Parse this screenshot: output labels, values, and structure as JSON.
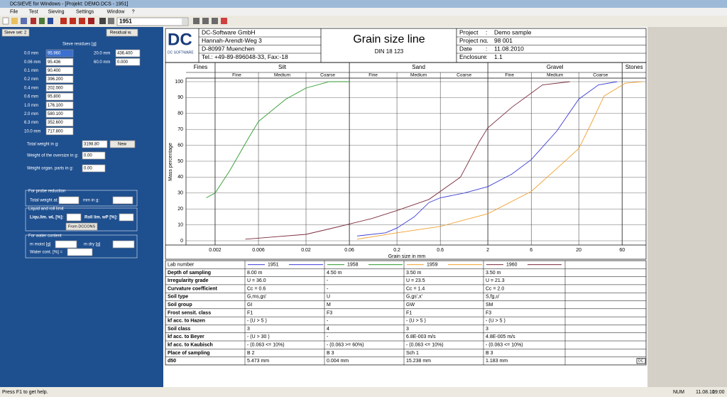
{
  "window": {
    "title": "DCSIEVE for Windows - [Projekt: DEMO.DCS - 1951]",
    "menu": [
      "File",
      "Test",
      "Sieving",
      "Settings",
      "Window",
      "?"
    ],
    "combo": "1951",
    "status": "Press F1 to get help.",
    "indicators": [
      "NUM",
      "11.08.10",
      "19:00"
    ]
  },
  "left_panel": {
    "buttons": [
      "Sieve set: 2",
      "Residual w."
    ],
    "sieve_title": "Sieve residues [g]",
    "sieves": [
      {
        "label": "0.0 mm",
        "value": "95.960"
      },
      {
        "label": "0.06 mm",
        "value": "95.436"
      },
      {
        "label": "0.1 mm",
        "value": "90.400"
      },
      {
        "label": "0.2 mm",
        "value": "396.200"
      },
      {
        "label": "0.4 mm",
        "value": "202.000"
      },
      {
        "label": "0.6 mm",
        "value": "95.800"
      },
      {
        "label": "1.0 mm",
        "value": "176.100"
      },
      {
        "label": "2.0 mm",
        "value": "580.100"
      },
      {
        "label": "6.3 mm",
        "value": "352.600"
      },
      {
        "label": "10.0 mm",
        "value": "717.800"
      },
      {
        "label": "20.0 mm",
        "value": "436.400"
      },
      {
        "label": "60.0 mm",
        "value": "0.000"
      }
    ],
    "total_label": "Total weight in g:",
    "total_value": "3198.80",
    "new_button": "New",
    "oversize_label": "Weight of the oversize in g:",
    "oversize_value": "0.00",
    "organ_label": "Weight organ. parts in g:",
    "organ_value": "0.00",
    "probe": {
      "title": "For probe reduction",
      "label": "Total weight at:",
      "unit": "mm in g:"
    },
    "liquid": {
      "title": "Liquid and roll limit",
      "liquid_label": "Liqu.lim. wL [%]:",
      "roll_label": "Roll lim. wP [%]:",
      "button": "From DCCONS"
    },
    "water": {
      "title": "For water content",
      "moist": "m moist [g]",
      "dry": "m dry [g]",
      "content": "Water cont. [%] ="
    }
  },
  "report": {
    "logo": "DC",
    "logo_sub": "DC SOFTWARE",
    "company": [
      "DC-Software GmbH",
      "Hannah-Arendt-Weg 3",
      "D-80997 Muenchen",
      "Tel.: +49-89-896048-33, Fax:-18"
    ],
    "title": "Grain size line",
    "subtitle": "DIN 18 123",
    "separator": ":",
    "info": [
      {
        "label": "Project",
        "value": "Demo sample"
      },
      {
        "label": "Project no.",
        "value": "98 001"
      },
      {
        "label": "Date",
        "value": "11.08.2010"
      },
      {
        "label": "Enclosure",
        "value": "1.1"
      }
    ],
    "stamp": "DC"
  },
  "chart_data": {
    "type": "line",
    "x_label": "Grain size in mm",
    "y_label": "Mass percentage",
    "xscale": "log",
    "grid": true,
    "bands": [
      "Fines",
      "Silt",
      "Sand",
      "Gravel",
      "Stones"
    ],
    "fractions": [
      "Fine",
      "Medium",
      "Coarse"
    ],
    "xlim": [
      0.0006,
      110
    ],
    "ylim": [
      0,
      100
    ],
    "xticks": [
      0.002,
      0.006,
      0.02,
      0.06,
      0.2,
      0.6,
      2,
      6,
      20,
      60
    ],
    "yticks": [
      0,
      10,
      20,
      30,
      40,
      50,
      60,
      70,
      80,
      90,
      100
    ],
    "series": [
      {
        "name": "1951",
        "color": "#3b3bd6",
        "x": [
          0.073,
          0.15,
          0.2,
          0.31,
          0.45,
          0.6,
          1.1,
          2,
          3.7,
          6,
          11.5,
          20,
          33,
          53
        ],
        "values": [
          3,
          5,
          8,
          15,
          24,
          27,
          30,
          34,
          42,
          51,
          69,
          89,
          98,
          100
        ]
      },
      {
        "name": "1958",
        "color": "#2e9a2e",
        "x": [
          0.0016,
          0.002,
          0.0029,
          0.0046,
          0.006,
          0.012,
          0.02,
          0.036,
          0.06
        ],
        "values": [
          27,
          30,
          44,
          64,
          75,
          89,
          96,
          100,
          100
        ]
      },
      {
        "name": "1959",
        "color": "#f0a030",
        "x": [
          0.073,
          0.2,
          0.6,
          2,
          6,
          13.5,
          20,
          27,
          38,
          65,
          100
        ],
        "values": [
          1,
          5,
          9,
          17,
          31,
          49,
          58,
          73,
          91,
          99,
          100
        ]
      },
      {
        "name": "1960",
        "color": "#7a2a3a",
        "x": [
          0.0043,
          0.02,
          0.043,
          0.107,
          0.2,
          0.45,
          1,
          1.6,
          2,
          3.7,
          8,
          16
        ],
        "values": [
          1,
          4,
          8.5,
          14,
          19,
          26,
          40,
          62,
          71,
          84,
          98,
          100
        ]
      }
    ]
  },
  "table": {
    "header": "Lab number",
    "rows": [
      {
        "label": "Depth of sampling",
        "cells": [
          "8.00 m",
          "4.50 m",
          "3.50 m",
          "3.50 m"
        ]
      },
      {
        "label": "Irregularity grade",
        "cells": [
          "U   = 36.0",
          "-",
          "U   = 23.5",
          "U   = 21.3"
        ]
      },
      {
        "label": "Curvature coefficient",
        "cells": [
          "Cc = 0.6",
          "-",
          "Cc = 1.4",
          "Cc = 2.0"
        ]
      },
      {
        "label": "Soil type",
        "cells": [
          "G,ms,gs'",
          "U",
          "G,gs',x'",
          "S,fg,u'"
        ]
      },
      {
        "label": "Soil group",
        "cells": [
          "GI",
          "M",
          "GW",
          "SM"
        ]
      },
      {
        "label": "Frost sensit. class",
        "cells": [
          "F1",
          "F3",
          "F1",
          "F3"
        ]
      },
      {
        "label": "kf acc. to Hazen",
        "cells": [
          "- (U > 5 )",
          "-",
          "- (U > 5 )",
          "- (U > 5 )"
        ]
      },
      {
        "label": "Soil class",
        "cells": [
          "3",
          "4",
          "3",
          "3"
        ]
      },
      {
        "label": "kf acc. to Beyer",
        "cells": [
          "- (U > 30 )",
          "-",
          "6.8E-003 m/s",
          "4.8E-005 m/s"
        ]
      },
      {
        "label": "kf acc. to Kaubisch",
        "cells": [
          "- (0.063 <= 10%)",
          "- (0.063 >= 60%)",
          "- (0.063 <= 10%)",
          "- (0.063 <= 10%)"
        ]
      },
      {
        "label": "Place of sampling",
        "cells": [
          "B 2",
          "B 3",
          "Sch 1",
          "B 3"
        ]
      },
      {
        "label": "d50",
        "cells": [
          "5.473 mm",
          "0.004 mm",
          "15.238 mm",
          "1.183 mm"
        ]
      }
    ]
  }
}
